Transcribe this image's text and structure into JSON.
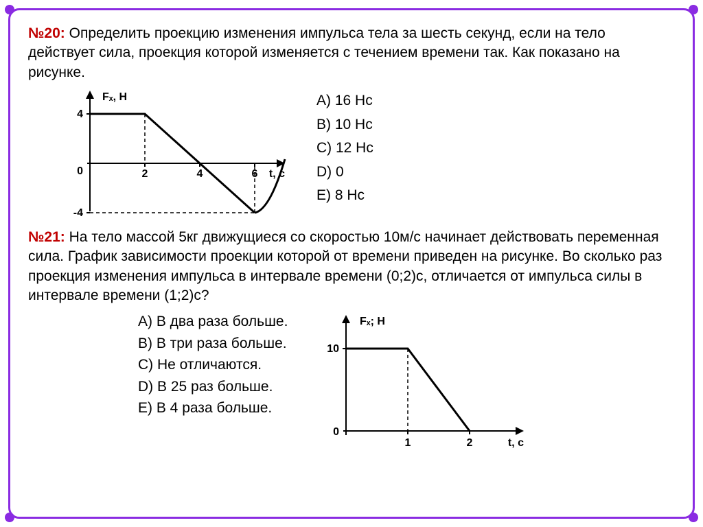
{
  "problem20": {
    "label": "№20:",
    "text": "Определить проекцию изменения импульса тела за шесть секунд, если на тело действует сила, проекция которой изменяется с течением времени так. Как показано на рисунке.",
    "options": [
      {
        "letter": "A",
        "text": "16 Нс"
      },
      {
        "letter": "B",
        "text": "10 Нс"
      },
      {
        "letter": "C",
        "text": "12 Нс"
      },
      {
        "letter": "D",
        "text": "0"
      },
      {
        "letter": "E",
        "text": "8 Нс"
      }
    ],
    "chart": {
      "type": "line",
      "x_label": "t, с",
      "y_label": "Fₓ,  Н",
      "x_ticks": [
        2,
        4,
        6
      ],
      "y_ticks": [
        4,
        -4
      ],
      "xlim": [
        0,
        7
      ],
      "ylim": [
        -5,
        6
      ],
      "line_color": "#000000",
      "line_width": 3,
      "dash_color": "#000000",
      "points": [
        {
          "t": 0,
          "F": 4
        },
        {
          "t": 2,
          "F": 4
        },
        {
          "t": 6,
          "F": -4
        }
      ],
      "tail_curve": true,
      "background_color": "#ffffff"
    }
  },
  "problem21": {
    "label": "№21:",
    "text": "На тело массой 5кг движущиеся со скоростью 10м/с начинает действовать переменная сила. График зависимости проекции которой от времени приведен на рисунке. Во сколько раз проекция изменения импульса в интервале времени (0;2)с, отличается от импульса силы в интервале времени (1;2)с?",
    "options": [
      {
        "letter": "A",
        "text": "В два раза больше."
      },
      {
        "letter": "B",
        "text": "В три раза больше."
      },
      {
        "letter": "C",
        "text": "Не отличаются."
      },
      {
        "letter": "D",
        "text": "В 25 раз больше."
      },
      {
        "letter": "E",
        "text": "В 4 раза больше."
      }
    ],
    "chart": {
      "type": "line",
      "x_label": "t, с",
      "y_label": "Fₓ; Н",
      "x_ticks": [
        1,
        2
      ],
      "y_ticks": [
        10
      ],
      "xlim": [
        0,
        3
      ],
      "ylim": [
        0,
        14
      ],
      "line_color": "#000000",
      "line_width": 3,
      "dash_color": "#000000",
      "points": [
        {
          "t": 0,
          "F": 10
        },
        {
          "t": 1,
          "F": 10
        },
        {
          "t": 2,
          "F": 0
        }
      ],
      "background_color": "#ffffff"
    }
  },
  "style": {
    "border_color": "#8a2be2",
    "accent_color": "#c00000",
    "text_color": "#000000",
    "font_size_body": 21,
    "font_size_axis": 16
  }
}
